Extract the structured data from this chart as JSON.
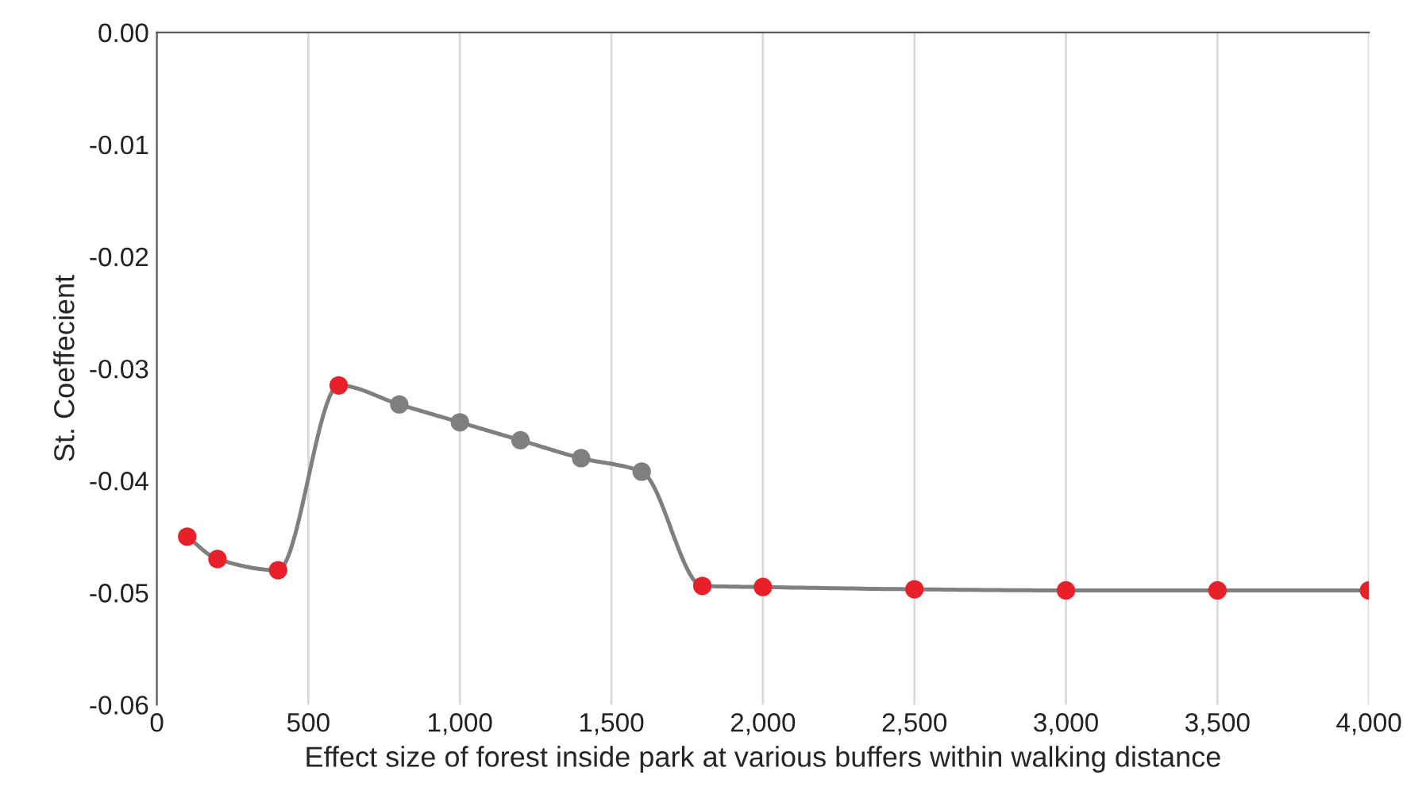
{
  "chart_data": {
    "type": "line",
    "xlabel": "Effect size of forest inside park at various buffers within walking distance",
    "ylabel": "St. Coeffecient",
    "x": [
      100,
      200,
      400,
      600,
      800,
      1000,
      1200,
      1400,
      1600,
      1800,
      2000,
      2500,
      3000,
      3500,
      4000
    ],
    "series": [
      {
        "color": "#7f7f7f",
        "values": [
          -0.045,
          -0.047,
          -0.048,
          -0.0315,
          -0.0332,
          -0.0348,
          -0.0364,
          -0.038,
          -0.0392,
          -0.0494,
          -0.0495,
          -0.0497,
          -0.0498,
          -0.0498,
          -0.0498
        ],
        "colors": [
          "#e8202a",
          "#e8202a",
          "#e8202a",
          "#e8202a",
          "#7f7f7f",
          "#7f7f7f",
          "#7f7f7f",
          "#7f7f7f",
          "#7f7f7f",
          "#e8202a",
          "#e8202a",
          "#e8202a",
          "#e8202a",
          "#e8202a",
          "#e8202a"
        ]
      }
    ],
    "marker": "circle",
    "line_style": "solid",
    "grid": "x",
    "xlim": [
      0,
      4000
    ],
    "xticks": [
      {
        "value": 0,
        "label": "0"
      },
      {
        "value": 500,
        "label": "500"
      },
      {
        "value": 1000,
        "label": "1,000"
      },
      {
        "value": 1500,
        "label": "1,500"
      },
      {
        "value": 2000,
        "label": "2,000"
      },
      {
        "value": 2500,
        "label": "2,500"
      },
      {
        "value": 3000,
        "label": "3,000"
      },
      {
        "value": 3500,
        "label": "3,500"
      },
      {
        "value": 4000,
        "label": "4,000"
      }
    ],
    "ylim": [
      -0.06,
      0
    ],
    "yticks": [
      {
        "value": -0.06,
        "label": "-0.06"
      },
      {
        "value": -0.05,
        "label": "-0.05"
      },
      {
        "value": -0.04,
        "label": "-0.04"
      },
      {
        "value": -0.03,
        "label": "-0.03"
      },
      {
        "value": -0.02,
        "label": "-0.02"
      },
      {
        "value": -0.01,
        "label": "-0.01"
      },
      {
        "value": 0,
        "label": "0.00"
      }
    ]
  }
}
